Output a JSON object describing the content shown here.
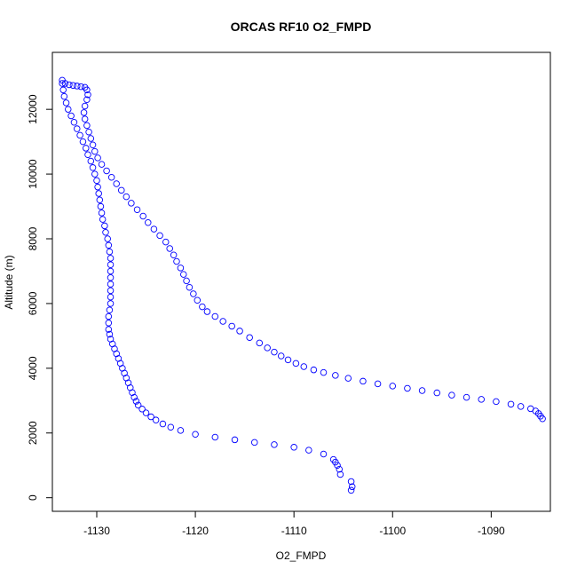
{
  "chart_data": {
    "type": "scatter",
    "title": "ORCAS RF10 O2_FMPD",
    "xlabel": "O2_FMPD",
    "ylabel": "Altitude (m)",
    "xlim": [
      -1134.5,
      -1084.0
    ],
    "ylim": [
      -420,
      13760
    ],
    "x_ticks": [
      -1130,
      -1120,
      -1110,
      -1100,
      -1090
    ],
    "y_ticks": [
      0,
      2000,
      4000,
      6000,
      8000,
      10000,
      12000
    ],
    "grid": false,
    "legend": "none",
    "marker": "open-circle",
    "color": "#0000ff",
    "series": [
      {
        "points": [
          [
            -1104.2,
            230
          ],
          [
            -1104.1,
            340
          ],
          [
            -1104.2,
            500
          ],
          [
            -1105.3,
            720
          ],
          [
            -1105.4,
            880
          ],
          [
            -1105.6,
            1000
          ],
          [
            -1105.8,
            1100
          ],
          [
            -1106.0,
            1180
          ],
          [
            -1107.0,
            1350
          ],
          [
            -1108.5,
            1470
          ],
          [
            -1110.0,
            1560
          ],
          [
            -1112.0,
            1640
          ],
          [
            -1114.0,
            1710
          ],
          [
            -1116.0,
            1790
          ],
          [
            -1118.0,
            1870
          ],
          [
            -1120.0,
            1960
          ],
          [
            -1121.5,
            2080
          ],
          [
            -1122.5,
            2180
          ],
          [
            -1123.3,
            2280
          ],
          [
            -1124.0,
            2400
          ],
          [
            -1124.5,
            2500
          ],
          [
            -1125.0,
            2620
          ],
          [
            -1125.4,
            2740
          ],
          [
            -1125.8,
            2860
          ],
          [
            -1126.0,
            2980
          ],
          [
            -1126.2,
            3100
          ],
          [
            -1126.4,
            3250
          ],
          [
            -1126.6,
            3400
          ],
          [
            -1126.8,
            3550
          ],
          [
            -1127.0,
            3700
          ],
          [
            -1127.2,
            3850
          ],
          [
            -1127.4,
            4000
          ],
          [
            -1127.6,
            4150
          ],
          [
            -1127.8,
            4300
          ],
          [
            -1128.0,
            4450
          ],
          [
            -1128.2,
            4600
          ],
          [
            -1128.4,
            4750
          ],
          [
            -1128.6,
            4900
          ],
          [
            -1128.7,
            5050
          ],
          [
            -1128.8,
            5200
          ],
          [
            -1128.8,
            5400
          ],
          [
            -1128.8,
            5600
          ],
          [
            -1128.7,
            5800
          ],
          [
            -1128.6,
            6000
          ],
          [
            -1128.6,
            6200
          ],
          [
            -1128.6,
            6400
          ],
          [
            -1128.6,
            6600
          ],
          [
            -1128.6,
            6800
          ],
          [
            -1128.6,
            7000
          ],
          [
            -1128.6,
            7200
          ],
          [
            -1128.6,
            7400
          ],
          [
            -1128.7,
            7600
          ],
          [
            -1128.8,
            7800
          ],
          [
            -1128.9,
            8000
          ],
          [
            -1129.1,
            8200
          ],
          [
            -1129.2,
            8400
          ],
          [
            -1129.4,
            8600
          ],
          [
            -1129.5,
            8800
          ],
          [
            -1129.6,
            9000
          ],
          [
            -1129.7,
            9200
          ],
          [
            -1129.8,
            9400
          ],
          [
            -1129.9,
            9600
          ],
          [
            -1130.0,
            9800
          ],
          [
            -1130.2,
            10000
          ],
          [
            -1130.4,
            10200
          ],
          [
            -1130.6,
            10400
          ],
          [
            -1130.9,
            10600
          ],
          [
            -1131.1,
            10800
          ],
          [
            -1131.4,
            11000
          ],
          [
            -1131.7,
            11200
          ],
          [
            -1132.0,
            11400
          ],
          [
            -1132.3,
            11600
          ],
          [
            -1132.6,
            11800
          ],
          [
            -1132.9,
            12000
          ],
          [
            -1133.1,
            12200
          ],
          [
            -1133.3,
            12400
          ],
          [
            -1133.4,
            12600
          ],
          [
            -1133.5,
            12800
          ],
          [
            -1133.5,
            12900
          ],
          [
            -1133.2,
            12800
          ],
          [
            -1132.8,
            12760
          ],
          [
            -1132.4,
            12740
          ],
          [
            -1132.0,
            12720
          ],
          [
            -1131.6,
            12700
          ],
          [
            -1131.2,
            12680
          ],
          [
            -1131.0,
            12600
          ],
          [
            -1130.9,
            12450
          ],
          [
            -1131.0,
            12300
          ],
          [
            -1131.2,
            12100
          ],
          [
            -1131.3,
            11900
          ],
          [
            -1131.2,
            11700
          ],
          [
            -1131.0,
            11500
          ],
          [
            -1130.8,
            11300
          ],
          [
            -1130.6,
            11100
          ],
          [
            -1130.4,
            10900
          ],
          [
            -1130.2,
            10700
          ],
          [
            -1129.9,
            10500
          ],
          [
            -1129.5,
            10300
          ],
          [
            -1129.0,
            10100
          ],
          [
            -1128.5,
            9900
          ],
          [
            -1128.0,
            9700
          ],
          [
            -1127.5,
            9500
          ],
          [
            -1127.0,
            9300
          ],
          [
            -1126.5,
            9100
          ],
          [
            -1125.9,
            8900
          ],
          [
            -1125.3,
            8700
          ],
          [
            -1124.8,
            8500
          ],
          [
            -1124.2,
            8300
          ],
          [
            -1123.6,
            8100
          ],
          [
            -1123.0,
            7900
          ],
          [
            -1122.6,
            7700
          ],
          [
            -1122.2,
            7500
          ],
          [
            -1121.9,
            7300
          ],
          [
            -1121.5,
            7100
          ],
          [
            -1121.2,
            6900
          ],
          [
            -1120.9,
            6700
          ],
          [
            -1120.6,
            6500
          ],
          [
            -1120.2,
            6300
          ],
          [
            -1119.8,
            6100
          ],
          [
            -1119.3,
            5900
          ],
          [
            -1118.8,
            5750
          ],
          [
            -1118.0,
            5600
          ],
          [
            -1117.2,
            5450
          ],
          [
            -1116.3,
            5300
          ],
          [
            -1115.5,
            5150
          ],
          [
            -1114.5,
            4950
          ],
          [
            -1113.5,
            4780
          ],
          [
            -1112.7,
            4630
          ],
          [
            -1112.0,
            4500
          ],
          [
            -1111.3,
            4380
          ],
          [
            -1110.6,
            4260
          ],
          [
            -1109.8,
            4150
          ],
          [
            -1109.0,
            4050
          ],
          [
            -1108.0,
            3950
          ],
          [
            -1107.0,
            3870
          ],
          [
            -1105.8,
            3780
          ],
          [
            -1104.5,
            3690
          ],
          [
            -1103.0,
            3600
          ],
          [
            -1101.5,
            3520
          ],
          [
            -1100.0,
            3450
          ],
          [
            -1098.5,
            3380
          ],
          [
            -1097.0,
            3310
          ],
          [
            -1095.5,
            3240
          ],
          [
            -1094.0,
            3170
          ],
          [
            -1092.5,
            3100
          ],
          [
            -1091.0,
            3040
          ],
          [
            -1089.5,
            2970
          ],
          [
            -1088.0,
            2890
          ],
          [
            -1087.0,
            2820
          ],
          [
            -1086.0,
            2750
          ],
          [
            -1085.5,
            2680
          ],
          [
            -1085.2,
            2600
          ],
          [
            -1085.0,
            2520
          ],
          [
            -1084.8,
            2440
          ]
        ]
      }
    ]
  }
}
